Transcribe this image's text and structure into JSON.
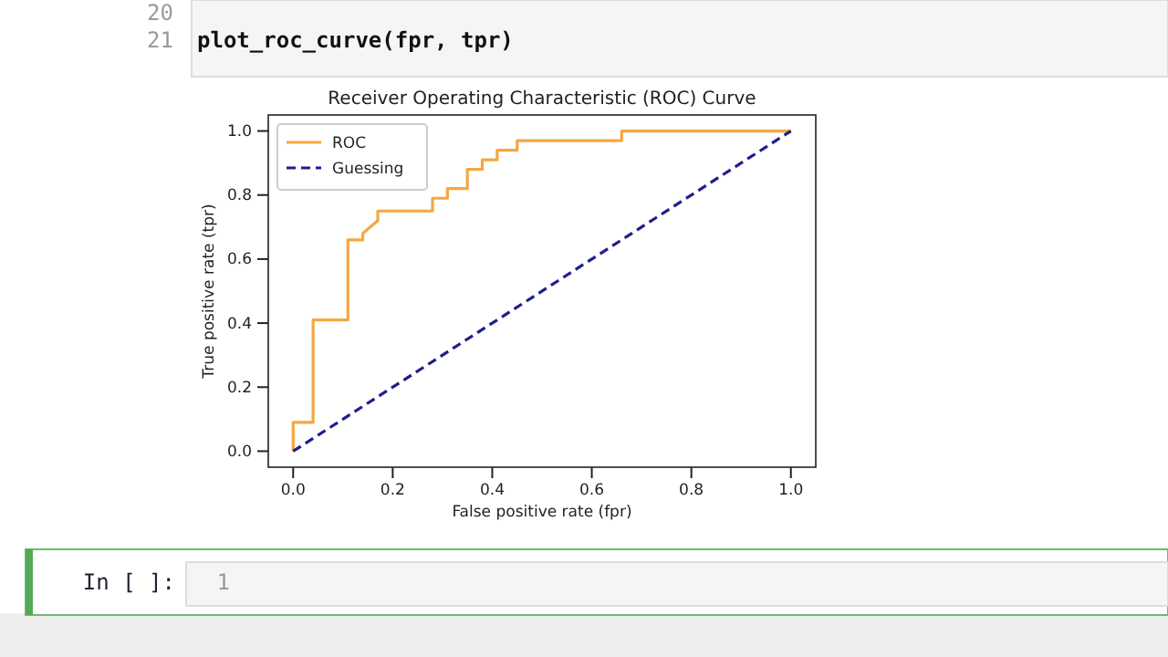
{
  "chart_data": {
    "type": "line",
    "title": "Receiver Operating Characteristic (ROC) Curve",
    "xlabel": "False positive rate (fpr)",
    "ylabel": "True positive rate (tpr)",
    "xlim": [
      -0.05,
      1.05
    ],
    "ylim": [
      -0.05,
      1.05
    ],
    "xticks": [
      {
        "value": 0,
        "label": "0.0"
      },
      {
        "value": 0.2,
        "label": "0.2"
      },
      {
        "value": 0.4,
        "label": "0.4"
      },
      {
        "value": 0.6,
        "label": "0.6"
      },
      {
        "value": 0.8,
        "label": "0.8"
      },
      {
        "value": 1,
        "label": "1.0"
      }
    ],
    "yticks": [
      {
        "value": 0,
        "label": "0.0"
      },
      {
        "value": 0.2,
        "label": "0.2"
      },
      {
        "value": 0.4,
        "label": "0.4"
      },
      {
        "value": 0.6,
        "label": "0.6"
      },
      {
        "value": 0.8,
        "label": "0.8"
      },
      {
        "value": 1,
        "label": "1.0"
      }
    ],
    "series": [
      {
        "name": "ROC",
        "color": "#f5a742",
        "line_style": "solid",
        "x": [
          0,
          0,
          0.04,
          0.04,
          0.11,
          0.11,
          0.14,
          0.14,
          0.17,
          0.17,
          0.28,
          0.28,
          0.31,
          0.31,
          0.35,
          0.35,
          0.38,
          0.38,
          0.41,
          0.41,
          0.45,
          0.45,
          0.66,
          0.66,
          1.0
        ],
        "values": [
          0,
          0.09,
          0.09,
          0.41,
          0.41,
          0.66,
          0.66,
          0.68,
          0.72,
          0.75,
          0.75,
          0.79,
          0.79,
          0.82,
          0.82,
          0.88,
          0.88,
          0.91,
          0.91,
          0.94,
          0.94,
          0.97,
          0.97,
          1.0,
          1.0
        ]
      },
      {
        "name": "Guessing",
        "color": "#1f1f8a",
        "line_style": "dashed",
        "x": [
          0,
          1
        ],
        "values": [
          0,
          1
        ]
      }
    ],
    "legend": "top left",
    "annotations": [
      "20",
      "21",
      "plot_roc_curve(fpr, tpr)",
      "In [ ]:",
      "1"
    ]
  }
}
